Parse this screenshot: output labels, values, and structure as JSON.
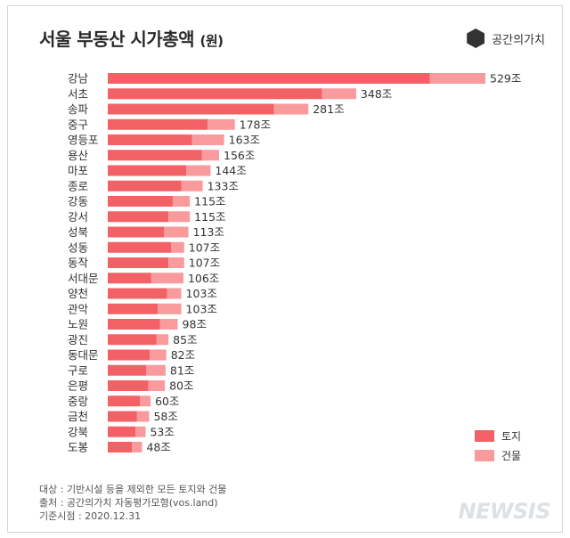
{
  "header": {
    "title": "서울 부동산 시가총액",
    "unit": "(원)",
    "brand": "공간의가치"
  },
  "colors": {
    "land": "#f26165",
    "building": "#f99a9c"
  },
  "legend": {
    "land": "토지",
    "building": "건물"
  },
  "notes": {
    "line1": "대상 : 기반시설 등을 제외한 모든 토지와 건물",
    "line2": "출처 : 공간의가치 자동평가모형(vos.land)",
    "line3": "기준시점 : 2020.12.31"
  },
  "watermark": "NEWSIS",
  "chart_data": {
    "type": "bar",
    "orientation": "horizontal",
    "stacked": true,
    "title": "서울 부동산 시가총액 (원)",
    "value_suffix": "조",
    "categories": [
      "강남",
      "서초",
      "송파",
      "중구",
      "영등포",
      "용산",
      "마포",
      "종로",
      "강동",
      "강서",
      "성북",
      "성동",
      "동작",
      "서대문",
      "양천",
      "관악",
      "노원",
      "광진",
      "동대문",
      "구로",
      "은평",
      "중랑",
      "금천",
      "강북",
      "도봉"
    ],
    "totals": [
      529,
      348,
      281,
      178,
      163,
      156,
      144,
      133,
      115,
      115,
      113,
      107,
      107,
      106,
      103,
      103,
      98,
      85,
      82,
      81,
      80,
      60,
      58,
      53,
      48
    ],
    "total_labels": [
      "529조",
      "348조",
      "281조",
      "178조",
      "163조",
      "156조",
      "144조",
      "133조",
      "115조",
      "115조",
      "113조",
      "107조",
      "107조",
      "106조",
      "103조",
      "103조",
      "98조",
      "85조",
      "82조",
      "81조",
      "80조",
      "60조",
      "58조",
      "53조",
      "48조"
    ],
    "series": [
      {
        "name": "토지",
        "values": [
          451,
          300,
          233,
          140,
          118,
          132,
          110,
          103,
          91,
          85,
          79,
          89,
          85,
          61,
          83,
          70,
          73,
          68,
          59,
          54,
          57,
          45,
          41,
          39,
          34
        ]
      },
      {
        "name": "건물",
        "values": [
          78,
          48,
          48,
          38,
          45,
          24,
          34,
          30,
          24,
          30,
          34,
          18,
          22,
          45,
          20,
          33,
          25,
          17,
          23,
          27,
          23,
          15,
          17,
          14,
          14
        ]
      }
    ],
    "xlim": [
      0,
      529
    ]
  }
}
